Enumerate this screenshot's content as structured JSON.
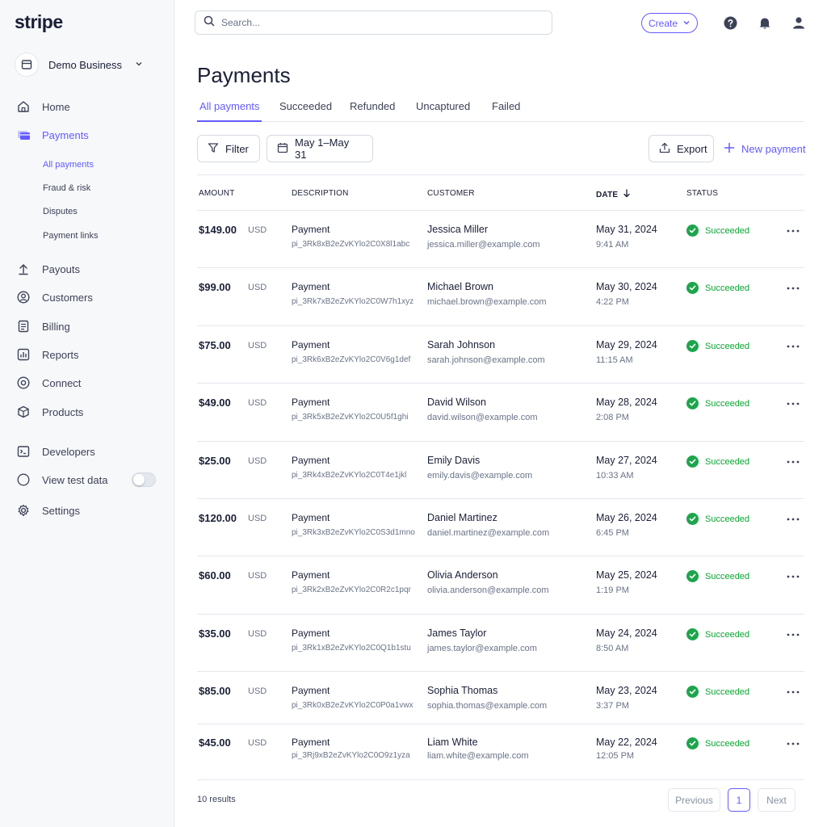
{
  "brand": {
    "logo": "stripe",
    "accent": "#635bff",
    "success": "#1ea54c"
  },
  "sidebar": {
    "business_name": "Demo Business",
    "items": [
      {
        "label": "Home",
        "icon": "home-icon"
      },
      {
        "label": "Payments",
        "icon": "payments-icon",
        "active": true
      },
      {
        "label": "Payouts",
        "icon": "payouts-icon"
      },
      {
        "label": "Customers",
        "icon": "customers-icon"
      },
      {
        "label": "Billing",
        "icon": "billing-icon"
      },
      {
        "label": "Reports",
        "icon": "reports-icon"
      },
      {
        "label": "Connect",
        "icon": "connect-icon"
      },
      {
        "label": "Products",
        "icon": "products-icon"
      },
      {
        "label": "Developers",
        "icon": "developers-icon"
      },
      {
        "label": "View test data",
        "icon": "toggle-circle-icon"
      },
      {
        "label": "Settings",
        "icon": "gear-icon"
      }
    ],
    "sub_items": [
      {
        "label": "All payments",
        "active": true
      },
      {
        "label": "Fraud & risk"
      },
      {
        "label": "Disputes"
      },
      {
        "label": "Payment links"
      }
    ],
    "test_data_enabled": false
  },
  "topbar": {
    "search_placeholder": "Search...",
    "create_label": "Create"
  },
  "main": {
    "title": "Payments",
    "tabs": [
      "All payments",
      "Succeeded",
      "Refunded",
      "Uncaptured",
      "Failed"
    ],
    "active_tab": "All payments",
    "filter_label": "Filter",
    "date_range": "May 1–May 31",
    "export_label": "Export",
    "new_payment_label": "New payment",
    "columns": [
      "AMOUNT",
      "DESCRIPTION",
      "CUSTOMER",
      "DATE",
      "STATUS"
    ],
    "sort_column": "DATE",
    "rows": [
      {
        "amount": "$149.00",
        "currency": "USD",
        "description": "Payment",
        "id": "pi_3Rk8xB2eZvKYlo2C0X8l1abc",
        "customer": "Jessica Miller",
        "email": "jessica.miller@example.com",
        "date": "May 31, 2024",
        "time": "9:41 AM",
        "status": "Succeeded"
      },
      {
        "amount": "$99.00",
        "currency": "USD",
        "description": "Payment",
        "id": "pi_3Rk7xB2eZvKYlo2C0W7h1xyz",
        "customer": "Michael Brown",
        "email": "michael.brown@example.com",
        "date": "May 30, 2024",
        "time": "4:22 PM",
        "status": "Succeeded"
      },
      {
        "amount": "$75.00",
        "currency": "USD",
        "description": "Payment",
        "id": "pi_3Rk6xB2eZvKYlo2C0V6g1def",
        "customer": "Sarah Johnson",
        "email": "sarah.johnson@example.com",
        "date": "May 29, 2024",
        "time": "11:15 AM",
        "status": "Succeeded"
      },
      {
        "amount": "$49.00",
        "currency": "USD",
        "description": "Payment",
        "id": "pi_3Rk5xB2eZvKYlo2C0U5f1ghi",
        "customer": "David Wilson",
        "email": "david.wilson@example.com",
        "date": "May 28, 2024",
        "time": "2:08 PM",
        "status": "Succeeded"
      },
      {
        "amount": "$25.00",
        "currency": "USD",
        "description": "Payment",
        "id": "pi_3Rk4xB2eZvKYlo2C0T4e1jkl",
        "customer": "Emily Davis",
        "email": "emily.davis@example.com",
        "date": "May 27, 2024",
        "time": "10:33 AM",
        "status": "Succeeded"
      },
      {
        "amount": "$120.00",
        "currency": "USD",
        "description": "Payment",
        "id": "pi_3Rk3xB2eZvKYlo2C0S3d1mno",
        "customer": "Daniel Martinez",
        "email": "daniel.martinez@example.com",
        "date": "May 26, 2024",
        "time": "6:45 PM",
        "status": "Succeeded"
      },
      {
        "amount": "$60.00",
        "currency": "USD",
        "description": "Payment",
        "id": "pi_3Rk2xB2eZvKYlo2C0R2c1pqr",
        "customer": "Olivia Anderson",
        "email": "olivia.anderson@example.com",
        "date": "May 25, 2024",
        "time": "1:19 PM",
        "status": "Succeeded"
      },
      {
        "amount": "$35.00",
        "currency": "USD",
        "description": "Payment",
        "id": "pi_3Rk1xB2eZvKYlo2C0Q1b1stu",
        "customer": "James Taylor",
        "email": "james.taylor@example.com",
        "date": "May 24, 2024",
        "time": "8:50 AM",
        "status": "Succeeded"
      },
      {
        "amount": "$85.00",
        "currency": "USD",
        "description": "Payment",
        "id": "pi_3Rk0xB2eZvKYlo2C0P0a1vwx",
        "customer": "Sophia Thomas",
        "email": "sophia.thomas@example.com",
        "date": "May 23, 2024",
        "time": "3:37 PM",
        "status": "Succeeded"
      },
      {
        "amount": "$45.00",
        "currency": "USD",
        "description": "Payment",
        "id": "pi_3Rj9xB2eZvKYlo2C0O9z1yza",
        "customer": "Liam White",
        "email": "liam.white@example.com",
        "date": "May 22, 2024",
        "time": "12:05 PM",
        "status": "Succeeded"
      }
    ],
    "results_label": "10 results",
    "pagination": {
      "previous": "Previous",
      "current": "1",
      "next": "Next"
    }
  }
}
